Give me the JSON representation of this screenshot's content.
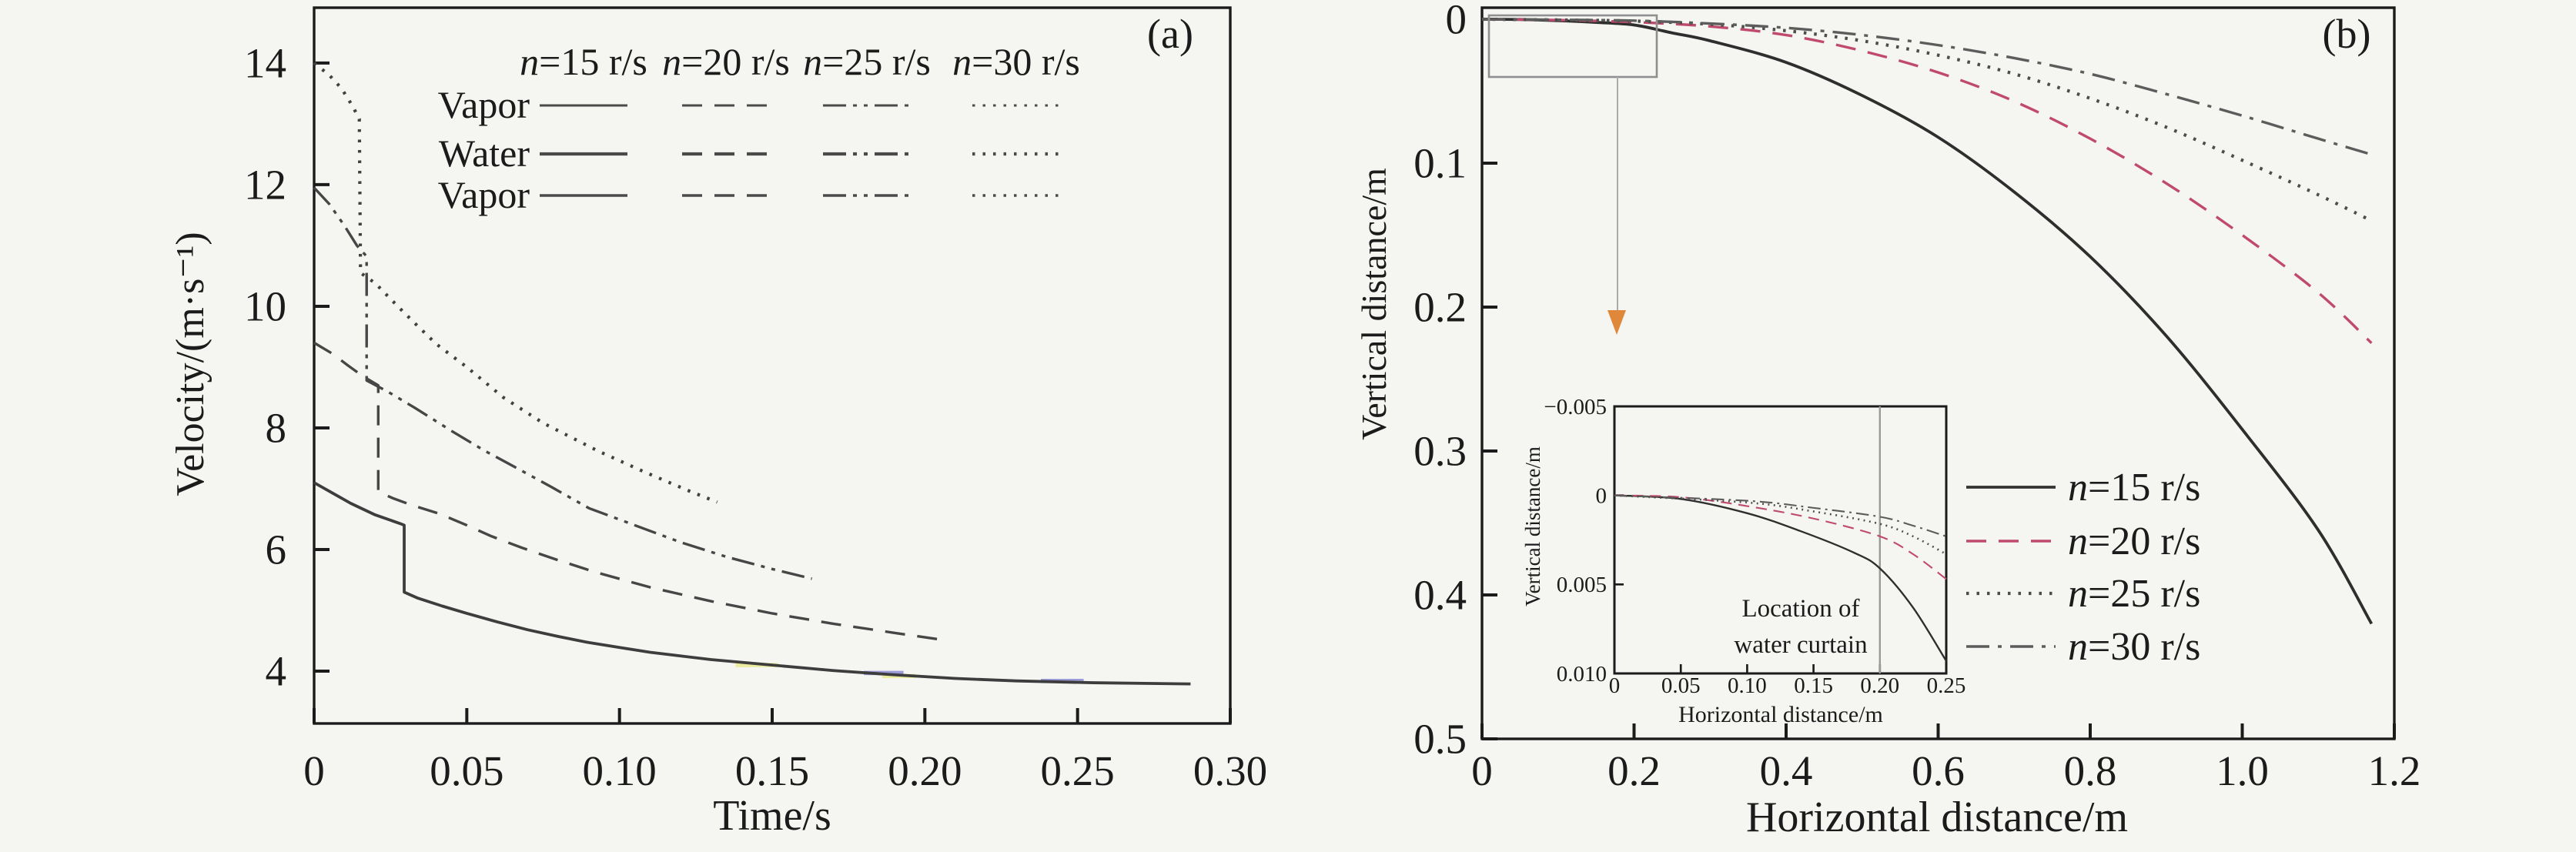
{
  "background_color": "#f5f5f2",
  "axis_color": "#1b1b1b",
  "chart_data": [
    {
      "id": "panel-a",
      "type": "line",
      "panel_label": "(a)",
      "xlabel": "Time/s",
      "ylabel": "Velocity/(m·s⁻¹)",
      "xlim": [
        0,
        0.3
      ],
      "ylim": [
        3.14,
        14.91
      ],
      "invert_y": false,
      "grid": false,
      "x_ticks": [
        0,
        0.05,
        0.1,
        0.15,
        0.2,
        0.25,
        0.3
      ],
      "x_tick_labels": [
        "0",
        "0.05",
        "0.10",
        "0.15",
        "0.20",
        "0.25",
        "0.30"
      ],
      "y_ticks": [
        4,
        6,
        8,
        10,
        12,
        14
      ],
      "y_tick_labels": [
        "4",
        "6",
        "8",
        "10",
        "12",
        "14"
      ],
      "legend": {
        "position": "top-inside",
        "columns": [
          {
            "var": "n",
            "rest": "=15 r/s",
            "style": "solid"
          },
          {
            "var": "n",
            "rest": "=20 r/s",
            "style": "dashed"
          },
          {
            "var": "n",
            "rest": "=25 r/s",
            "style": "dash-dot-dot"
          },
          {
            "var": "n",
            "rest": "=30 r/s",
            "style": "dotted"
          }
        ],
        "rows": [
          "Vapor",
          "Water",
          "Vapor"
        ],
        "sample_color": "#4a4a4a"
      },
      "series": [
        {
          "name": "n=15 r/s",
          "style": "solid",
          "color": "#3d3d3d",
          "points": [
            [
              0,
              7.1
            ],
            [
              0.006,
              6.93
            ],
            [
              0.012,
              6.76
            ],
            [
              0.02,
              6.57
            ],
            [
              0.028,
              6.43
            ],
            [
              0.0295,
              6.4
            ],
            [
              0.0295,
              5.3
            ],
            [
              0.034,
              5.2
            ],
            [
              0.042,
              5.07
            ],
            [
              0.05,
              4.95
            ],
            [
              0.06,
              4.81
            ],
            [
              0.07,
              4.68
            ],
            [
              0.08,
              4.57
            ],
            [
              0.09,
              4.47
            ],
            [
              0.1,
              4.39
            ],
            [
              0.11,
              4.31
            ],
            [
              0.12,
              4.25
            ],
            [
              0.13,
              4.19
            ],
            [
              0.15,
              4.1
            ],
            [
              0.17,
              4.01
            ],
            [
              0.19,
              3.94
            ],
            [
              0.21,
              3.88
            ],
            [
              0.23,
              3.84
            ],
            [
              0.255,
              3.81
            ],
            [
              0.287,
              3.79
            ]
          ]
        },
        {
          "name": "n=20 r/s",
          "style": "dashed",
          "color": "#464646",
          "points": [
            [
              0,
              9.4
            ],
            [
              0.006,
              9.22
            ],
            [
              0.011,
              9.03
            ],
            [
              0.016,
              8.85
            ],
            [
              0.021,
              8.7
            ],
            [
              0.021,
              6.95
            ],
            [
              0.026,
              6.84
            ],
            [
              0.032,
              6.73
            ],
            [
              0.041,
              6.59
            ],
            [
              0.05,
              6.4
            ],
            [
              0.058,
              6.22
            ],
            [
              0.068,
              6.03
            ],
            [
              0.079,
              5.84
            ],
            [
              0.092,
              5.63
            ],
            [
              0.11,
              5.38
            ],
            [
              0.13,
              5.15
            ],
            [
              0.15,
              4.95
            ],
            [
              0.17,
              4.78
            ],
            [
              0.19,
              4.63
            ],
            [
              0.205,
              4.52
            ]
          ]
        },
        {
          "name": "n=25 r/s",
          "style": "dash-dot-dot",
          "color": "#464646",
          "points": [
            [
              0,
              11.95
            ],
            [
              0.005,
              11.68
            ],
            [
              0.01,
              11.32
            ],
            [
              0.014,
              11.0
            ],
            [
              0.0172,
              10.82
            ],
            [
              0.0172,
              8.78
            ],
            [
              0.024,
              8.6
            ],
            [
              0.033,
              8.33
            ],
            [
              0.045,
              7.95
            ],
            [
              0.056,
              7.62
            ],
            [
              0.066,
              7.35
            ],
            [
              0.078,
              7.02
            ],
            [
              0.09,
              6.68
            ],
            [
              0.105,
              6.4
            ],
            [
              0.12,
              6.12
            ],
            [
              0.135,
              5.88
            ],
            [
              0.15,
              5.68
            ],
            [
              0.163,
              5.52
            ]
          ]
        },
        {
          "name": "n=30 r/s",
          "style": "dotted",
          "color": "#404040",
          "points": [
            [
              0,
              14.0
            ],
            [
              0.005,
              13.8
            ],
            [
              0.009,
              13.58
            ],
            [
              0.0125,
              13.3
            ],
            [
              0.0148,
              13.08
            ],
            [
              0.0152,
              10.55
            ],
            [
              0.02,
              10.38
            ],
            [
              0.027,
              10.02
            ],
            [
              0.033,
              9.72
            ],
            [
              0.04,
              9.38
            ],
            [
              0.05,
              9.0
            ],
            [
              0.062,
              8.5
            ],
            [
              0.075,
              8.08
            ],
            [
              0.093,
              7.62
            ],
            [
              0.108,
              7.28
            ],
            [
              0.122,
              6.98
            ],
            [
              0.132,
              6.78
            ]
          ]
        }
      ],
      "overlap_segments": [
        {
          "medium": "vapor",
          "color": "#ececa0",
          "x1": 0.138,
          "x2": 0.152,
          "y": 4.1
        },
        {
          "medium": "vapor",
          "color": "#ececa0",
          "x1": 0.186,
          "x2": 0.197,
          "y": 3.92
        },
        {
          "medium": "water",
          "color": "#9b9bd8",
          "x1": 0.18,
          "x2": 0.193,
          "y": 3.97
        },
        {
          "medium": "water",
          "color": "#9b9bd8",
          "x1": 0.238,
          "x2": 0.252,
          "y": 3.84
        }
      ]
    },
    {
      "id": "panel-b",
      "type": "line",
      "panel_label": "(b)",
      "xlabel": "Horizontal distance/m",
      "ylabel": "Vertical distance/m",
      "xlim": [
        0,
        1.2
      ],
      "ylim": [
        -0.008,
        0.5
      ],
      "invert_y": true,
      "grid": false,
      "x_ticks": [
        0,
        0.2,
        0.4,
        0.6,
        0.8,
        1.0,
        1.2
      ],
      "x_tick_labels": [
        "0",
        "0.2",
        "0.4",
        "0.6",
        "0.8",
        "1.0",
        "1.2"
      ],
      "y_ticks": [
        0,
        0.1,
        0.2,
        0.3,
        0.4,
        0.5
      ],
      "y_tick_labels": [
        "0",
        "0.1",
        "0.2",
        "0.3",
        "0.4",
        "0.5"
      ],
      "legend": {
        "position": "center-right-inside",
        "entries": [
          {
            "var": "n",
            "rest": "=15 r/s",
            "style": "solid",
            "color": "#333333"
          },
          {
            "var": "n",
            "rest": "=20 r/s",
            "style": "dashed",
            "color": "#c04a6e"
          },
          {
            "var": "n",
            "rest": "=25 r/s",
            "style": "dotted",
            "color": "#4c4c4c"
          },
          {
            "var": "n",
            "rest": "=30 r/s",
            "style": "dash-dot",
            "color": "#5c5c5c"
          }
        ]
      },
      "zoom_callout": {
        "arrow_color": "#e0883a",
        "box_color": "#8f8f8f"
      },
      "series": [
        {
          "name": "n=15 r/s",
          "style": "solid",
          "color": "#2e2e2e",
          "points": [
            [
              0,
              0
            ],
            [
              0.05,
              0.0002
            ],
            [
              0.1,
              0.001
            ],
            [
              0.15,
              0.0022
            ],
            [
              0.2,
              0.004
            ],
            [
              0.25,
              0.0095
            ],
            [
              0.3,
              0.015
            ],
            [
              0.4,
              0.03
            ],
            [
              0.5,
              0.053
            ],
            [
              0.6,
              0.082
            ],
            [
              0.7,
              0.12
            ],
            [
              0.8,
              0.165
            ],
            [
              0.9,
              0.22
            ],
            [
              1.0,
              0.285
            ],
            [
              1.1,
              0.355
            ],
            [
              1.17,
              0.42
            ]
          ]
        },
        {
          "name": "n=20 r/s",
          "style": "dashed",
          "color": "#c04a6e",
          "points": [
            [
              0,
              0
            ],
            [
              0.1,
              0.0006
            ],
            [
              0.2,
              0.002
            ],
            [
              0.3,
              0.005
            ],
            [
              0.4,
              0.011
            ],
            [
              0.5,
              0.022
            ],
            [
              0.6,
              0.037
            ],
            [
              0.7,
              0.057
            ],
            [
              0.8,
              0.083
            ],
            [
              0.9,
              0.114
            ],
            [
              1.0,
              0.15
            ],
            [
              1.1,
              0.19
            ],
            [
              1.17,
              0.225
            ]
          ]
        },
        {
          "name": "n=25 r/s",
          "style": "dotted",
          "color": "#4c4c4c",
          "points": [
            [
              0,
              0
            ],
            [
              0.1,
              0.0005
            ],
            [
              0.2,
              0.0013
            ],
            [
              0.3,
              0.0035
            ],
            [
              0.4,
              0.008
            ],
            [
              0.5,
              0.015
            ],
            [
              0.6,
              0.025
            ],
            [
              0.7,
              0.038
            ],
            [
              0.8,
              0.055
            ],
            [
              0.9,
              0.075
            ],
            [
              1.0,
              0.098
            ],
            [
              1.1,
              0.122
            ],
            [
              1.17,
              0.14
            ]
          ]
        },
        {
          "name": "n=30 r/s",
          "style": "dash-dot",
          "color": "#5c5c5c",
          "points": [
            [
              0,
              0
            ],
            [
              0.1,
              0.0004
            ],
            [
              0.2,
              0.001
            ],
            [
              0.3,
              0.003
            ],
            [
              0.4,
              0.006
            ],
            [
              0.5,
              0.011
            ],
            [
              0.6,
              0.018
            ],
            [
              0.7,
              0.027
            ],
            [
              0.8,
              0.038
            ],
            [
              0.9,
              0.052
            ],
            [
              1.0,
              0.067
            ],
            [
              1.1,
              0.083
            ],
            [
              1.17,
              0.094
            ]
          ]
        }
      ]
    },
    {
      "id": "panel-b-inset",
      "type": "line",
      "xlabel": "Horizontal distance/m",
      "ylabel": "Vertical distance/m",
      "xlim": [
        0,
        0.25
      ],
      "ylim": [
        -0.005,
        0.01
      ],
      "invert_y": true,
      "grid": false,
      "x_ticks": [
        0,
        0.05,
        0.1,
        0.15,
        0.2,
        0.25
      ],
      "x_tick_labels": [
        "0",
        "0.05",
        "0.10",
        "0.15",
        "0.20",
        "0.25"
      ],
      "y_ticks": [
        -0.005,
        0,
        0.005,
        0.01
      ],
      "y_tick_labels": [
        "−0.005",
        "0",
        "0.005",
        "0.010"
      ],
      "location_line_x": 0.2,
      "location_line_color": "#9a9a9a",
      "location_label": [
        "Location of",
        "water curtain"
      ],
      "series": [
        {
          "name": "n=15 r/s",
          "style": "solid",
          "color": "#2e2e2e",
          "points": [
            [
              0,
              0
            ],
            [
              0.05,
              0.0002
            ],
            [
              0.1,
              0.001
            ],
            [
              0.14,
              0.002
            ],
            [
              0.18,
              0.0032
            ],
            [
              0.2,
              0.0041
            ],
            [
              0.225,
              0.0063
            ],
            [
              0.25,
              0.0093
            ]
          ]
        },
        {
          "name": "n=20 r/s",
          "style": "dashed",
          "color": "#c04a6e",
          "points": [
            [
              0,
              0
            ],
            [
              0.05,
              0.0001
            ],
            [
              0.1,
              0.0006
            ],
            [
              0.15,
              0.0013
            ],
            [
              0.2,
              0.0023
            ],
            [
              0.225,
              0.0033
            ],
            [
              0.25,
              0.0047
            ]
          ]
        },
        {
          "name": "n=25 r/s",
          "style": "dotted",
          "color": "#4c4c4c",
          "points": [
            [
              0,
              0
            ],
            [
              0.1,
              0.0004
            ],
            [
              0.15,
              0.0009
            ],
            [
              0.2,
              0.0016
            ],
            [
              0.225,
              0.0023
            ],
            [
              0.25,
              0.0033
            ]
          ]
        },
        {
          "name": "n=30 r/s",
          "style": "dash-dot",
          "color": "#5c5c5c",
          "points": [
            [
              0,
              0
            ],
            [
              0.1,
              0.0003
            ],
            [
              0.15,
              0.0007
            ],
            [
              0.2,
              0.0012
            ],
            [
              0.225,
              0.0017
            ],
            [
              0.25,
              0.0023
            ]
          ]
        }
      ]
    }
  ]
}
